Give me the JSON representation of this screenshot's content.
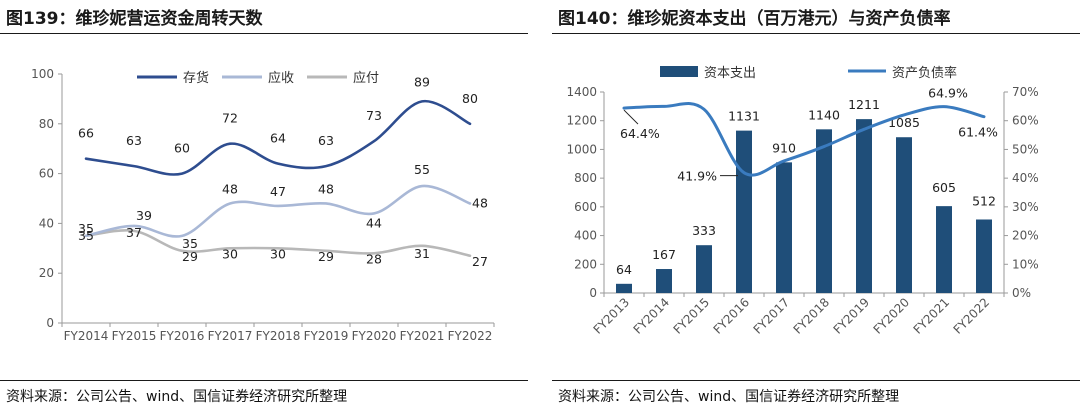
{
  "left": {
    "title": "图139：维珍妮营运资金周转天数",
    "source": "资料来源：公司公告、wind、国信证券经济研究所整理",
    "colors": {
      "inventory": "#2e4d8f",
      "receivable": "#a9b8d6",
      "payable": "#b8b8b8",
      "axis": "#9a9a9a"
    },
    "chart_data": {
      "type": "line",
      "categories": [
        "FY2014",
        "FY2015",
        "FY2016",
        "FY2017",
        "FY2018",
        "FY2019",
        "FY2020",
        "FY2021",
        "FY2022"
      ],
      "ylim": [
        0,
        100
      ],
      "yticks": [
        0,
        20,
        40,
        60,
        80,
        100
      ],
      "ytick_labels": [
        "0",
        "20",
        "40",
        "60",
        "80",
        "100"
      ],
      "series": [
        {
          "name": "存货",
          "values": [
            66,
            63,
            60,
            72,
            64,
            63,
            73,
            89,
            80
          ]
        },
        {
          "name": "应收",
          "values": [
            35,
            39,
            35,
            48,
            47,
            48,
            44,
            55,
            48
          ]
        },
        {
          "name": "应付",
          "values": [
            35,
            37,
            29,
            30,
            30,
            29,
            28,
            31,
            27
          ]
        }
      ],
      "legend_position": "top"
    }
  },
  "right": {
    "title": "图140：维珍妮资本支出（百万港元）与资产负债率",
    "source": "资料来源：公司公告、wind、国信证券经济研究所整理",
    "colors": {
      "bars": "#1f4e79",
      "line": "#3a7bbf",
      "axis": "#9a9a9a"
    },
    "chart_data": {
      "type": "bar+line",
      "categories": [
        "FY2013",
        "FY2014",
        "FY2015",
        "FY2016",
        "FY2017",
        "FY2018",
        "FY2019",
        "FY2020",
        "FY2021",
        "FY2022"
      ],
      "bar_series": {
        "name": "资本支出",
        "values": [
          64,
          167,
          333,
          1131,
          910,
          1140,
          1211,
          1085,
          605,
          512
        ]
      },
      "line_series": {
        "name": "资产负债率",
        "values": [
          64.4,
          65,
          64,
          41.9,
          46,
          51,
          57,
          62,
          64.9,
          61.4
        ]
      },
      "line_labels": {
        "FY2013": "64.4%",
        "FY2016": "41.9%",
        "FY2021": "64.9%",
        "FY2022": "61.4%"
      },
      "ylim_left": [
        0,
        1400
      ],
      "yticks_left": [
        0,
        200,
        400,
        600,
        800,
        1000,
        1200,
        1400
      ],
      "ytick_labels_left": [
        "0",
        "200",
        "400",
        "600",
        "800",
        "1000",
        "1200",
        "1400"
      ],
      "ylim_right": [
        0,
        70
      ],
      "yticks_right": [
        0,
        10,
        20,
        30,
        40,
        50,
        60,
        70
      ],
      "ytick_labels_right": [
        "0%",
        "10%",
        "20%",
        "30%",
        "40%",
        "50%",
        "60%",
        "70%"
      ],
      "legend_position": "top"
    }
  }
}
